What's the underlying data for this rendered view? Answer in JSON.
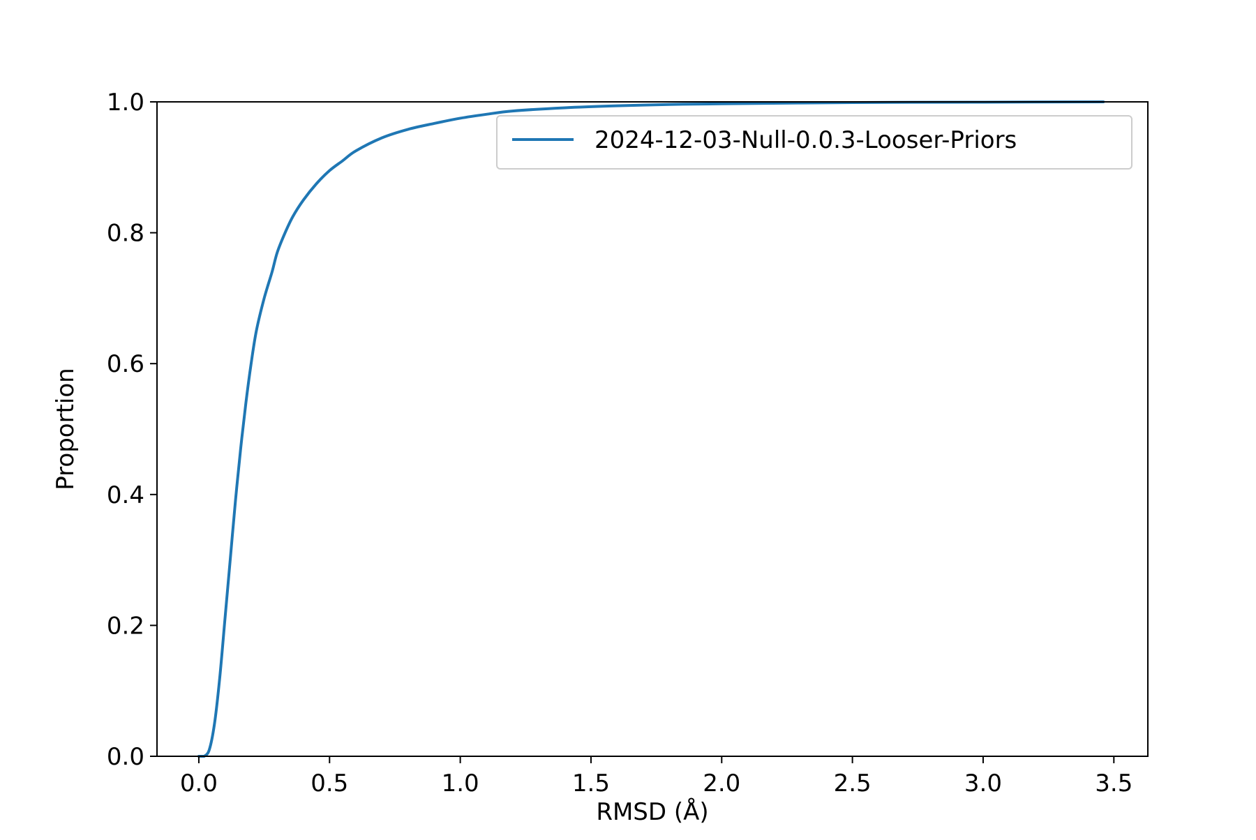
{
  "chart_data": {
    "type": "line",
    "title": "",
    "xlabel": "RMSD (Å)",
    "ylabel": "Proportion",
    "xlim": [
      -0.16,
      3.63
    ],
    "ylim": [
      0.0,
      1.0
    ],
    "x_ticks": [
      0.0,
      0.5,
      1.0,
      1.5,
      2.0,
      2.5,
      3.0,
      3.5
    ],
    "x_tick_labels": [
      "0.0",
      "0.5",
      "1.0",
      "1.5",
      "2.0",
      "2.5",
      "3.0",
      "3.5"
    ],
    "y_ticks": [
      0.0,
      0.2,
      0.4,
      0.6,
      0.8,
      1.0
    ],
    "y_tick_labels": [
      "0.0",
      "0.2",
      "0.4",
      "0.6",
      "0.8",
      "1.0"
    ],
    "grid": false,
    "legend_position": "top-right",
    "series": [
      {
        "name": "2024-12-03-Null-0.0.3-Looser-Priors",
        "color": "#1f77b4",
        "x": [
          0.0,
          0.02,
          0.04,
          0.06,
          0.08,
          0.1,
          0.12,
          0.14,
          0.16,
          0.18,
          0.2,
          0.22,
          0.25,
          0.28,
          0.3,
          0.33,
          0.36,
          0.4,
          0.45,
          0.5,
          0.55,
          0.6,
          0.7,
          0.8,
          0.9,
          1.0,
          1.1,
          1.2,
          1.4,
          1.6,
          1.8,
          2.0,
          2.5,
          3.0,
          3.46
        ],
        "y": [
          0.0,
          0.0,
          0.01,
          0.05,
          0.12,
          0.21,
          0.3,
          0.39,
          0.47,
          0.54,
          0.6,
          0.65,
          0.7,
          0.74,
          0.77,
          0.8,
          0.825,
          0.85,
          0.875,
          0.895,
          0.91,
          0.925,
          0.945,
          0.958,
          0.967,
          0.975,
          0.981,
          0.986,
          0.991,
          0.994,
          0.996,
          0.997,
          0.999,
          0.9995,
          1.0
        ]
      }
    ]
  }
}
